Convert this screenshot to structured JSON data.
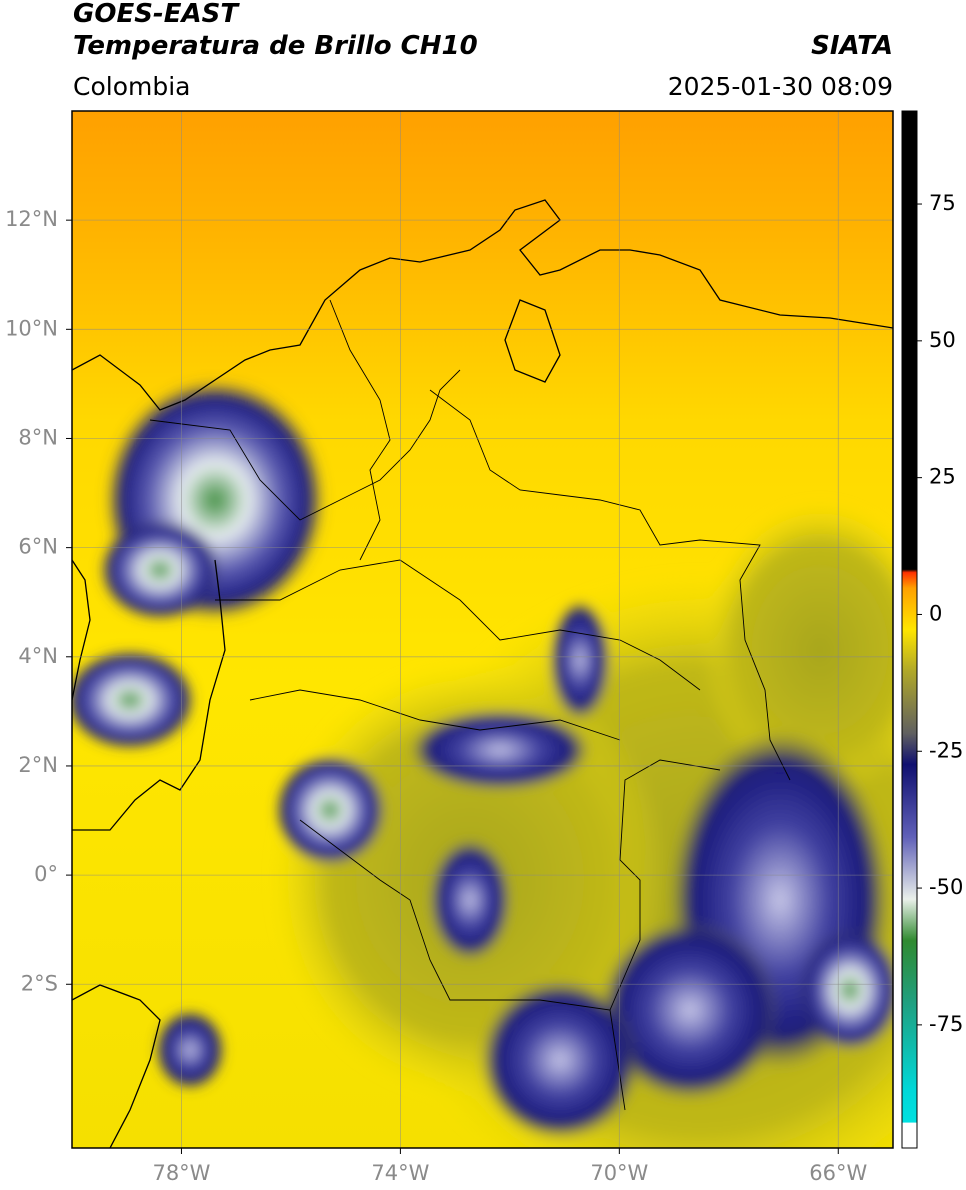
{
  "header": {
    "title": "GOES-EAST",
    "subtitle": "Temperatura de Brillo CH10",
    "source": "SIATA",
    "region": "Colombia",
    "datetime": "2025-01-30 08:09"
  },
  "map": {
    "xlim": [
      -80,
      -65
    ],
    "ylim": [
      -5,
      14
    ],
    "xticks": [
      {
        "value": -78,
        "label": "78°W"
      },
      {
        "value": -74,
        "label": "74°W"
      },
      {
        "value": -70,
        "label": "70°W"
      },
      {
        "value": -66,
        "label": "66°W"
      }
    ],
    "yticks": [
      {
        "value": 12,
        "label": "12°N"
      },
      {
        "value": 10,
        "label": "10°N"
      },
      {
        "value": 8,
        "label": "8°N"
      },
      {
        "value": 6,
        "label": "6°N"
      },
      {
        "value": 4,
        "label": "4°N"
      },
      {
        "value": 2,
        "label": "2°N"
      },
      {
        "value": 0,
        "label": "0°"
      },
      {
        "value": -2,
        "label": "2°S"
      }
    ],
    "grid": true
  },
  "colorbar": {
    "lim": [
      -97.5,
      92
    ],
    "ticks": [
      75,
      50,
      25,
      0,
      -25,
      -50,
      -75
    ]
  }
}
